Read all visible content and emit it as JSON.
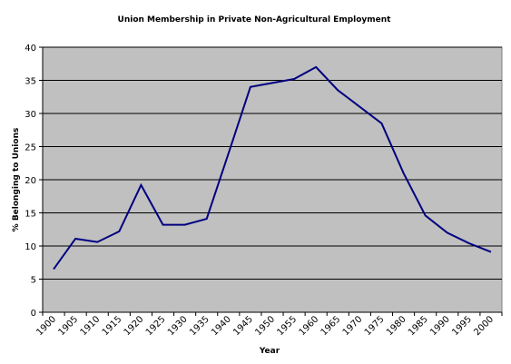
{
  "chart_data": {
    "type": "line",
    "title": "Union Membership in Private Non-Agricultural Employment",
    "x_label": "Year",
    "y_label": "% Belonging to Unions",
    "categories": [
      "1900",
      "1905",
      "1910",
      "1915",
      "1920",
      "1925",
      "1930",
      "1935",
      "1940",
      "1945",
      "1950",
      "1955",
      "1960",
      "1965",
      "1970",
      "1975",
      "1980",
      "1985",
      "1990",
      "1995",
      "2000"
    ],
    "series": [
      {
        "name": "Union Membership",
        "color": "#000080",
        "values": [
          6.5,
          11.1,
          10.6,
          12.2,
          19.2,
          13.2,
          13.2,
          14.1,
          24,
          34,
          34.6,
          35.2,
          37,
          33.5,
          31,
          28.5,
          21,
          14.6,
          12,
          10.4,
          9.1
        ]
      }
    ],
    "ylim": [
      0,
      40
    ],
    "yticks": [
      0,
      5,
      10,
      15,
      20,
      25,
      30,
      35,
      40
    ],
    "grid": true,
    "background": "#c0c0c0"
  }
}
